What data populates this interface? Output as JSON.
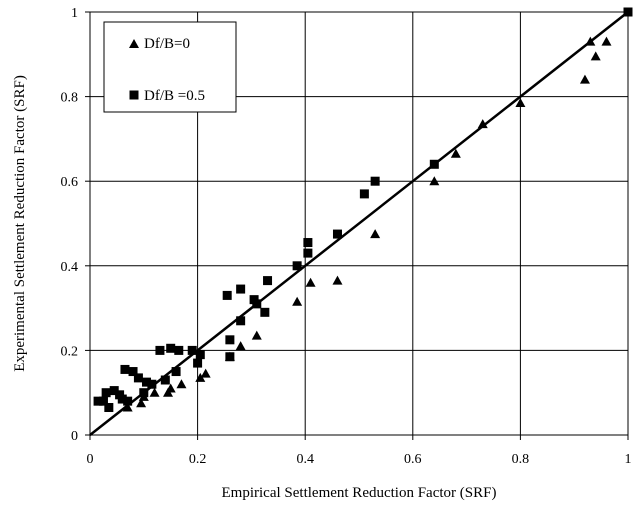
{
  "chart_data": {
    "type": "scatter",
    "xlabel": "Empirical Settlement Reduction Factor (SRF)",
    "ylabel": "Experimental Settlement Reduction Factor (SRF)",
    "xlim": [
      0,
      1
    ],
    "ylim": [
      0,
      1
    ],
    "xticks": [
      "0",
      "0.2",
      "0.4",
      "0.6",
      "0.8",
      "1"
    ],
    "yticks": [
      "0",
      "0.2",
      "0.4",
      "0.6",
      "0.8",
      "1"
    ],
    "grid": true,
    "legend_position": "top-left",
    "reference_line": {
      "x": [
        0,
        1
      ],
      "y": [
        0,
        1
      ]
    },
    "series": [
      {
        "name": "Df/B=0",
        "marker": "triangle",
        "color": "#000000",
        "points": [
          [
            0.07,
            0.065
          ],
          [
            0.095,
            0.075
          ],
          [
            0.1,
            0.09
          ],
          [
            0.12,
            0.1
          ],
          [
            0.145,
            0.1
          ],
          [
            0.15,
            0.11
          ],
          [
            0.17,
            0.12
          ],
          [
            0.205,
            0.135
          ],
          [
            0.215,
            0.145
          ],
          [
            0.26,
            0.185
          ],
          [
            0.28,
            0.21
          ],
          [
            0.31,
            0.235
          ],
          [
            0.385,
            0.315
          ],
          [
            0.41,
            0.36
          ],
          [
            0.46,
            0.365
          ],
          [
            0.53,
            0.475
          ],
          [
            0.64,
            0.6
          ],
          [
            0.68,
            0.665
          ],
          [
            0.73,
            0.735
          ],
          [
            0.8,
            0.785
          ],
          [
            0.92,
            0.84
          ],
          [
            0.93,
            0.93
          ],
          [
            0.94,
            0.895
          ],
          [
            0.96,
            0.93
          ]
        ]
      },
      {
        "name": "Df/B =0.5",
        "marker": "square",
        "color": "#000000",
        "points": [
          [
            0.015,
            0.08
          ],
          [
            0.025,
            0.08
          ],
          [
            0.03,
            0.1
          ],
          [
            0.035,
            0.065
          ],
          [
            0.045,
            0.105
          ],
          [
            0.055,
            0.095
          ],
          [
            0.06,
            0.085
          ],
          [
            0.065,
            0.155
          ],
          [
            0.07,
            0.08
          ],
          [
            0.08,
            0.15
          ],
          [
            0.09,
            0.135
          ],
          [
            0.1,
            0.1
          ],
          [
            0.105,
            0.125
          ],
          [
            0.115,
            0.12
          ],
          [
            0.13,
            0.2
          ],
          [
            0.14,
            0.13
          ],
          [
            0.15,
            0.205
          ],
          [
            0.16,
            0.15
          ],
          [
            0.165,
            0.2
          ],
          [
            0.19,
            0.2
          ],
          [
            0.2,
            0.17
          ],
          [
            0.205,
            0.19
          ],
          [
            0.255,
            0.33
          ],
          [
            0.26,
            0.185
          ],
          [
            0.26,
            0.225
          ],
          [
            0.28,
            0.27
          ],
          [
            0.28,
            0.345
          ],
          [
            0.305,
            0.32
          ],
          [
            0.31,
            0.31
          ],
          [
            0.325,
            0.29
          ],
          [
            0.33,
            0.365
          ],
          [
            0.385,
            0.4
          ],
          [
            0.405,
            0.43
          ],
          [
            0.405,
            0.455
          ],
          [
            0.46,
            0.475
          ],
          [
            0.51,
            0.57
          ],
          [
            0.53,
            0.6
          ],
          [
            0.64,
            0.64
          ],
          [
            1.0,
            1.0
          ]
        ]
      }
    ]
  }
}
